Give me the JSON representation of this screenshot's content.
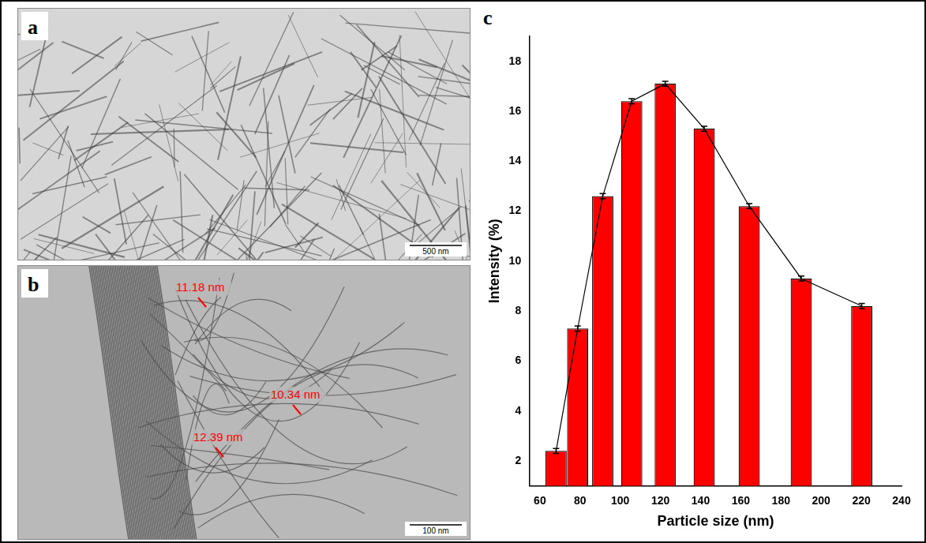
{
  "panels": [
    {
      "label": "a",
      "scale_bar": "500 nm"
    },
    {
      "label": "b",
      "scale_bar": "100 nm",
      "measurements": [
        "11.18 nm",
        "10.34 nm",
        "12.39 nm"
      ]
    }
  ],
  "chart_data": {
    "panel_label": "c",
    "type": "bar",
    "x_label": "Particle size (nm)",
    "y_label": "Intensity (%)",
    "x": [
      68.06,
      78.82,
      91.28,
      105.7,
      122.4,
      141.8,
      164.2,
      190.1,
      220.2
    ],
    "values": [
      2.4,
      7.3,
      12.6,
      16.4,
      17.1,
      15.3,
      12.2,
      9.3,
      8.2
    ],
    "errors": [
      0.1,
      0.1,
      0.1,
      0.1,
      0.1,
      0.1,
      0.1,
      0.1,
      0.1
    ],
    "color": "#ff0000",
    "xlim": [
      55,
      240
    ],
    "xticks": [
      60,
      80,
      100,
      120,
      140,
      160,
      180,
      200,
      220,
      240
    ],
    "ylim": [
      1,
      19
    ],
    "yticks": [
      2,
      4,
      6,
      8,
      10,
      12,
      14,
      16,
      18
    ],
    "grid": false
  }
}
